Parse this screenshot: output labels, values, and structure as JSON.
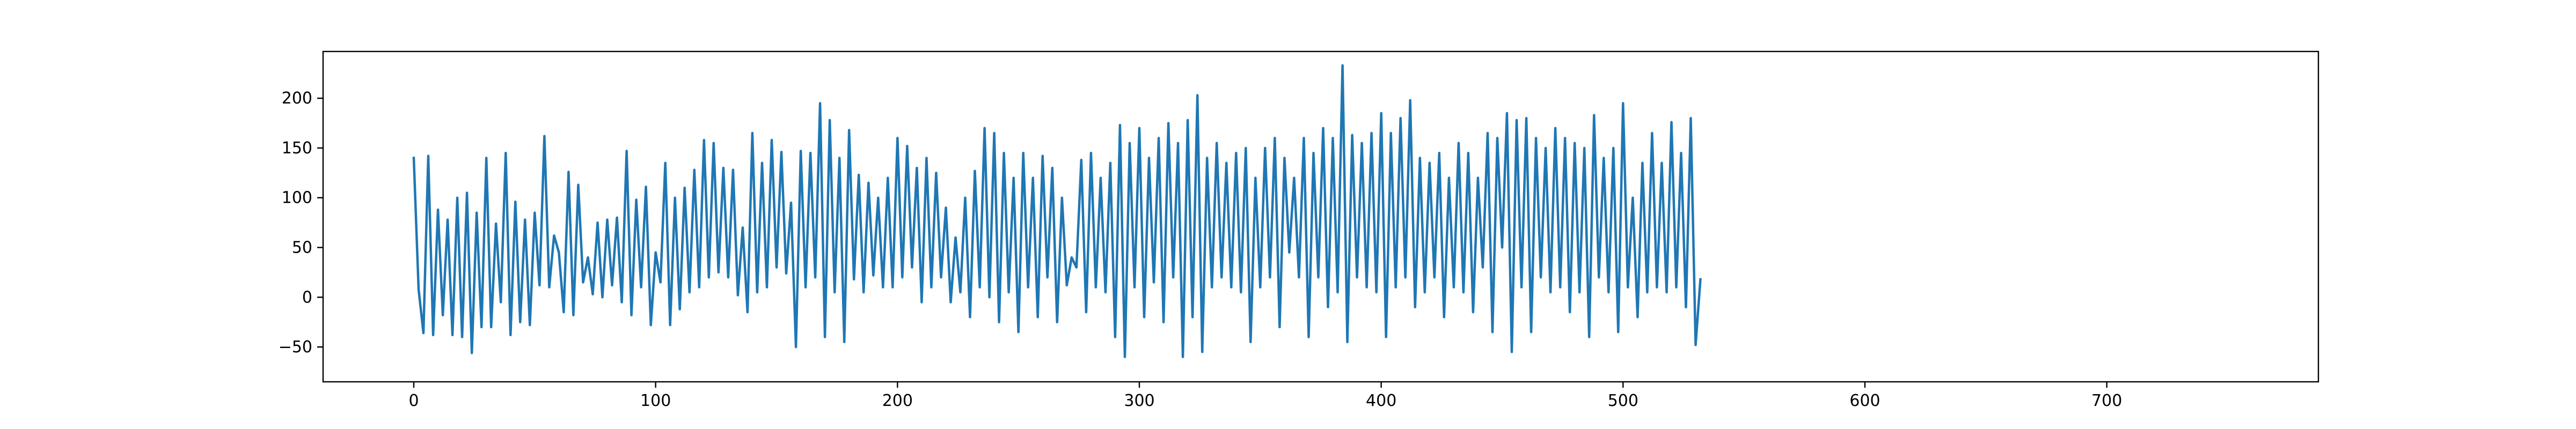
{
  "chart_data": {
    "type": "line",
    "title": "",
    "xlabel": "",
    "ylabel": "",
    "xlim": [
      -37.5,
      787.5
    ],
    "ylim": [
      -85,
      247
    ],
    "x_ticks": [
      0,
      100,
      200,
      300,
      400,
      500,
      600,
      700
    ],
    "y_ticks": [
      -50,
      0,
      50,
      100,
      150,
      200
    ],
    "grid": false,
    "legend": "none",
    "series": [
      {
        "color": "#1f77b4",
        "x_start": 0,
        "x_step": 2,
        "values": [
          140,
          8,
          -36,
          142,
          -38,
          88,
          -18,
          78,
          -38,
          100,
          -40,
          105,
          -56,
          85,
          -30,
          140,
          -30,
          74,
          -5,
          145,
          -38,
          96,
          -25,
          78,
          -28,
          85,
          12,
          162,
          10,
          62,
          45,
          -15,
          126,
          -18,
          113,
          15,
          40,
          3,
          75,
          0,
          78,
          12,
          80,
          -5,
          147,
          -18,
          98,
          10,
          111,
          -28,
          45,
          15,
          135,
          -28,
          100,
          -12,
          110,
          5,
          128,
          10,
          158,
          20,
          155,
          25,
          130,
          20,
          128,
          2,
          70,
          -15,
          165,
          5,
          135,
          10,
          158,
          30,
          146,
          24,
          95,
          -50,
          147,
          10,
          145,
          20,
          195,
          -40,
          178,
          5,
          140,
          -45,
          168,
          18,
          123,
          5,
          115,
          22,
          100,
          10,
          120,
          10,
          160,
          20,
          152,
          30,
          130,
          -5,
          140,
          10,
          125,
          20,
          90,
          -5,
          60,
          5,
          100,
          -20,
          127,
          10,
          170,
          0,
          165,
          -25,
          145,
          5,
          120,
          -35,
          145,
          10,
          120,
          -20,
          142,
          20,
          130,
          -25,
          100,
          12,
          40,
          30,
          138,
          -15,
          145,
          10,
          120,
          5,
          135,
          -40,
          173,
          -60,
          155,
          10,
          170,
          -20,
          140,
          15,
          160,
          -25,
          175,
          20,
          155,
          -60,
          178,
          -20,
          203,
          -55,
          140,
          10,
          155,
          20,
          135,
          10,
          145,
          5,
          150,
          -45,
          120,
          10,
          150,
          20,
          160,
          -30,
          140,
          45,
          120,
          20,
          160,
          -40,
          145,
          20,
          170,
          -10,
          160,
          5,
          233,
          -45,
          163,
          20,
          155,
          10,
          165,
          5,
          185,
          -40,
          165,
          10,
          180,
          20,
          198,
          -10,
          140,
          5,
          135,
          20,
          145,
          -20,
          120,
          10,
          155,
          5,
          145,
          -15,
          120,
          30,
          165,
          -35,
          160,
          50,
          185,
          -55,
          178,
          10,
          180,
          -35,
          160,
          20,
          150,
          5,
          170,
          10,
          160,
          -15,
          155,
          5,
          150,
          -40,
          183,
          20,
          140,
          5,
          150,
          -35,
          195,
          10,
          100,
          -20,
          135,
          5,
          165,
          10,
          135,
          5,
          176,
          10,
          145,
          -10,
          180,
          -48,
          18
        ]
      }
    ]
  }
}
